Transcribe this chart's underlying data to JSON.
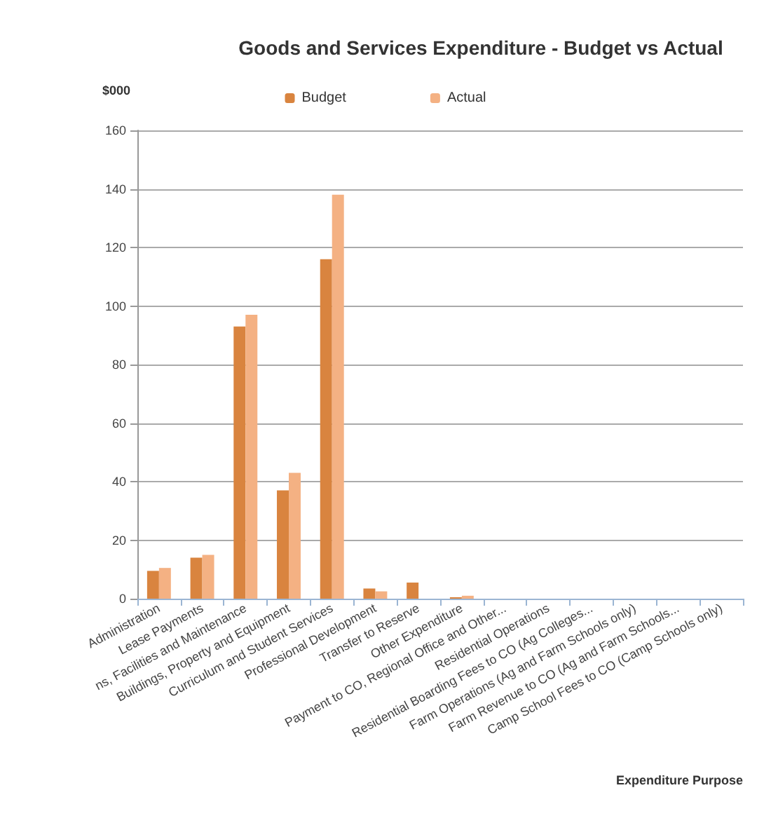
{
  "chart_data": {
    "type": "bar",
    "title": "Goods and Services Expenditure - Budget vs Actual",
    "ylabel": "$000",
    "xlabel": "Expenditure Purpose",
    "categories": [
      "Administration",
      "Lease Payments",
      "ns, Facilities and Maintenance",
      "Buildings, Property and Equipment",
      "Curriculum and Student Services",
      "Professional Development",
      "Transfer to Reserve",
      "Other Expenditure",
      "Payment to CO, Regional Office and Other...",
      "Residential Operations",
      "Residential Boarding Fees to CO (Ag Colleges...",
      "Farm Operations (Ag and Farm Schools only)",
      "Farm Revenue to CO (Ag and Farm Schools...",
      "Camp School Fees to CO (Camp Schools only)"
    ],
    "series": [
      {
        "name": "Budget",
        "color": "#d9843f",
        "values": [
          9.5,
          14,
          93,
          37,
          116,
          3.5,
          5.5,
          0.5,
          0,
          0,
          0,
          0,
          0,
          0
        ]
      },
      {
        "name": "Actual",
        "color": "#f4b183",
        "values": [
          10.5,
          15,
          97,
          43,
          138,
          2.5,
          0,
          1,
          0,
          0,
          0,
          0,
          0,
          0
        ]
      }
    ],
    "ylim": [
      0,
      160
    ],
    "yticks": [
      0,
      20,
      40,
      60,
      80,
      100,
      120,
      140,
      160
    ],
    "grid": "y",
    "legend": "top"
  }
}
